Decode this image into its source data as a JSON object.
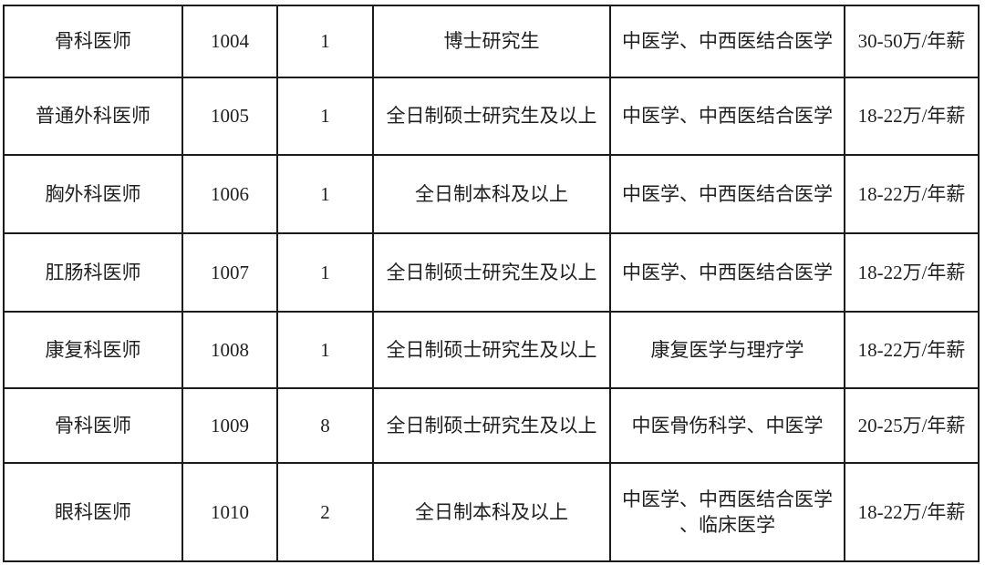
{
  "colors": {
    "background": "#ffffff",
    "border": "#1b1b1b",
    "text": "#1f1f1f"
  },
  "table": {
    "rows": [
      [
        "骨科医师",
        "1004",
        "1",
        "博士研究生",
        "中医学、中西医结合医学",
        "30-50万/年薪"
      ],
      [
        "普通外科医师",
        "1005",
        "1",
        "全日制硕士研究生及以上",
        "中医学、中西医结合医学",
        "18-22万/年薪"
      ],
      [
        "胸外科医师",
        "1006",
        "1",
        "全日制本科及以上",
        "中医学、中西医结合医学",
        "18-22万/年薪"
      ],
      [
        "肛肠科医师",
        "1007",
        "1",
        "全日制硕士研究生及以上",
        "中医学、中西医结合医学",
        "18-22万/年薪"
      ],
      [
        "康复科医师",
        "1008",
        "1",
        "全日制硕士研究生及以上",
        "康复医学与理疗学",
        "18-22万/年薪"
      ],
      [
        "骨科医师",
        "1009",
        "8",
        "全日制硕士研究生及以上",
        "中医骨伤科学、中医学",
        "20-25万/年薪"
      ],
      [
        "眼科医师",
        "1010",
        "2",
        "全日制本科及以上",
        "中医学、中西医结合医学\n、临床医学",
        "18-22万/年薪"
      ]
    ]
  }
}
